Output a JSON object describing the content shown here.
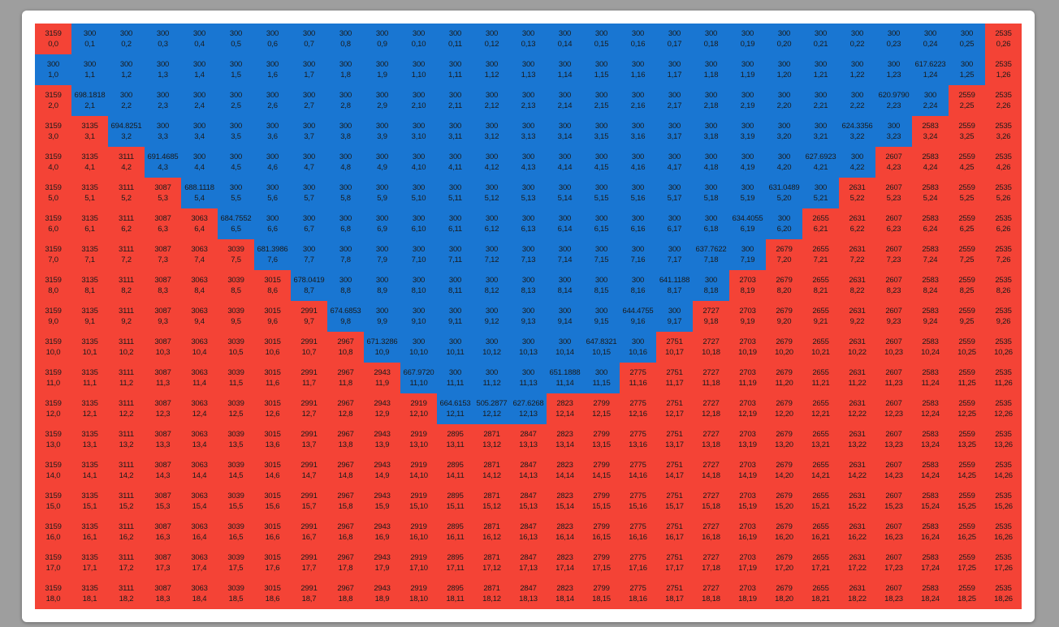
{
  "colors": {
    "background": "#9e9e9e",
    "panel": "#ffffff",
    "red": "#f44336",
    "blue": "#1976d2"
  },
  "grid": {
    "rows": 19,
    "cols": 27,
    "blue_value_text": "300",
    "red_base_value": 3159,
    "red_step": 24,
    "special_cells": [
      {
        "row": 1,
        "col": 24,
        "value": "617.6223"
      },
      {
        "row": 2,
        "col": 1,
        "value": "698.1818"
      },
      {
        "row": 2,
        "col": 23,
        "value": "620.9790"
      },
      {
        "row": 3,
        "col": 2,
        "value": "694.8251"
      },
      {
        "row": 3,
        "col": 22,
        "value": "624.3356"
      },
      {
        "row": 4,
        "col": 3,
        "value": "691.4685"
      },
      {
        "row": 4,
        "col": 21,
        "value": "627.6923"
      },
      {
        "row": 5,
        "col": 4,
        "value": "688.1118"
      },
      {
        "row": 5,
        "col": 20,
        "value": "631.0489"
      },
      {
        "row": 6,
        "col": 5,
        "value": "684.7552"
      },
      {
        "row": 6,
        "col": 19,
        "value": "634.4055"
      },
      {
        "row": 7,
        "col": 6,
        "value": "681.3986"
      },
      {
        "row": 7,
        "col": 18,
        "value": "637.7622"
      },
      {
        "row": 8,
        "col": 7,
        "value": "678.0419"
      },
      {
        "row": 8,
        "col": 17,
        "value": "641.1188"
      },
      {
        "row": 9,
        "col": 8,
        "value": "674.6853"
      },
      {
        "row": 9,
        "col": 16,
        "value": "644.4755"
      },
      {
        "row": 10,
        "col": 9,
        "value": "671.3286"
      },
      {
        "row": 10,
        "col": 15,
        "value": "647.8321"
      },
      {
        "row": 11,
        "col": 10,
        "value": "667.9720"
      },
      {
        "row": 11,
        "col": 14,
        "value": "651.1888"
      },
      {
        "row": 12,
        "col": 11,
        "value": "664.6153"
      },
      {
        "row": 12,
        "col": 12,
        "value": "505.2877"
      },
      {
        "row": 12,
        "col": 13,
        "value": "627.6268"
      }
    ]
  }
}
